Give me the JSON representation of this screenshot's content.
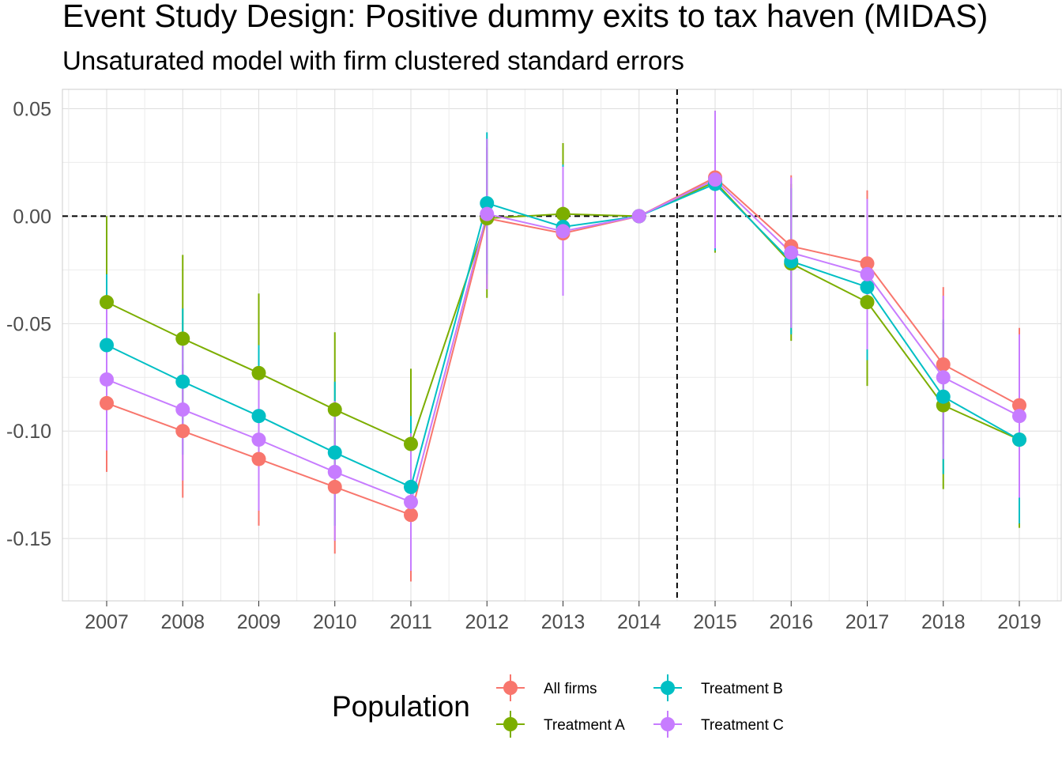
{
  "chart_data": {
    "type": "line",
    "title": "Event Study Design: Positive dummy exits to tax haven (MIDAS)",
    "subtitle": "Unsaturated model with firm clustered standard errors",
    "xlabel": "",
    "ylabel": "",
    "categories": [
      "2007",
      "2008",
      "2009",
      "2010",
      "2011",
      "2012",
      "2013",
      "2014",
      "2015",
      "2016",
      "2017",
      "2018",
      "2019"
    ],
    "y_ticks": [
      0.05,
      0.0,
      -0.05,
      -0.1,
      -0.15
    ],
    "y_tick_labels": [
      "0.05",
      "0.00",
      "-0.05",
      "-0.10",
      "-0.15"
    ],
    "ylim": [
      -0.179,
      0.059
    ],
    "grid": true,
    "reference_lines": {
      "horizontal_y": 0.0,
      "vertical_between": [
        "2014",
        "2015"
      ],
      "style": "dashed"
    },
    "legend": {
      "title": "Population",
      "position": "bottom"
    },
    "series": [
      {
        "name": "All firms",
        "color": "#F8766D",
        "values": [
          -0.087,
          -0.1,
          -0.113,
          -0.126,
          -0.139,
          -0.001,
          -0.008,
          0.0,
          0.018,
          -0.014,
          -0.022,
          -0.069,
          -0.088
        ],
        "lower": [
          -0.119,
          -0.131,
          -0.144,
          -0.157,
          -0.17,
          -0.034,
          -0.036,
          0.0,
          -0.01,
          -0.048,
          -0.055,
          -0.106,
          -0.124
        ],
        "upper": [
          -0.056,
          -0.069,
          -0.082,
          -0.095,
          -0.108,
          0.032,
          0.02,
          0.0,
          0.046,
          0.019,
          0.012,
          -0.033,
          -0.052
        ]
      },
      {
        "name": "Treatment A",
        "color": "#7CAE00",
        "values": [
          -0.04,
          -0.057,
          -0.073,
          -0.09,
          -0.106,
          -0.001,
          0.001,
          0.0,
          0.016,
          -0.022,
          -0.04,
          -0.088,
          -0.104
        ],
        "lower": [
          -0.08,
          -0.095,
          -0.11,
          -0.126,
          -0.141,
          -0.038,
          -0.031,
          0.0,
          -0.017,
          -0.058,
          -0.079,
          -0.127,
          -0.145
        ],
        "upper": [
          0.0,
          -0.018,
          -0.036,
          -0.054,
          -0.071,
          0.036,
          0.034,
          0.0,
          0.049,
          0.015,
          -0.001,
          -0.049,
          -0.064
        ]
      },
      {
        "name": "Treatment B",
        "color": "#00BFC4",
        "values": [
          -0.06,
          -0.077,
          -0.093,
          -0.11,
          -0.126,
          0.006,
          -0.005,
          0.0,
          0.015,
          -0.021,
          -0.033,
          -0.084,
          -0.104
        ],
        "lower": [
          -0.094,
          -0.111,
          -0.127,
          -0.144,
          -0.16,
          -0.027,
          -0.035,
          0.0,
          -0.016,
          -0.055,
          -0.067,
          -0.12,
          -0.143
        ],
        "upper": [
          -0.027,
          -0.043,
          -0.06,
          -0.077,
          -0.093,
          0.039,
          0.024,
          0.0,
          0.046,
          0.013,
          0.001,
          -0.048,
          -0.066
        ]
      },
      {
        "name": "Treatment C",
        "color": "#C77CFF",
        "values": [
          -0.076,
          -0.09,
          -0.104,
          -0.119,
          -0.133,
          0.001,
          -0.007,
          0.0,
          0.017,
          -0.017,
          -0.027,
          -0.075,
          -0.093
        ],
        "lower": [
          -0.109,
          -0.123,
          -0.137,
          -0.151,
          -0.165,
          -0.034,
          -0.037,
          0.0,
          -0.015,
          -0.052,
          -0.062,
          -0.113,
          -0.131
        ],
        "upper": [
          -0.043,
          -0.057,
          -0.071,
          -0.086,
          -0.101,
          0.036,
          0.023,
          0.0,
          0.049,
          0.018,
          0.008,
          -0.037,
          -0.055
        ]
      }
    ]
  }
}
